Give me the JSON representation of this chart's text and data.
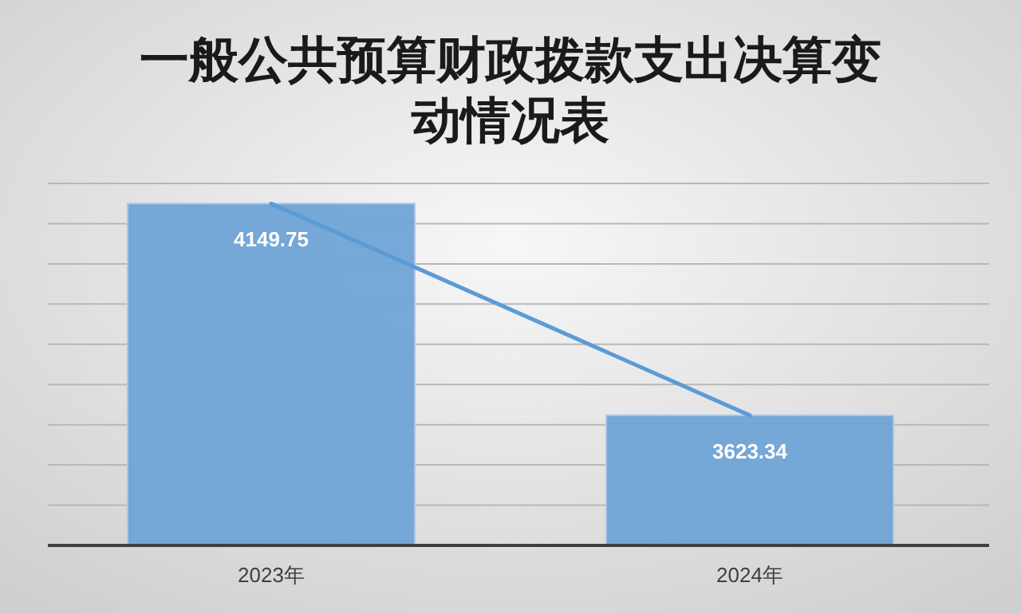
{
  "chart_data": {
    "type": "bar",
    "title": "一般公共预算财政拨款支出决算变动情况表",
    "categories": [
      "2023年",
      "2024年"
    ],
    "series": [
      {
        "color": "#6fa3d6",
        "values": [
          4149.75,
          3623.34
        ],
        "value_labels": [
          "4149.75",
          "3623.34"
        ]
      },
      {
        "type": "line",
        "color": "#5b9bd5",
        "values": [
          4149.75,
          3623.34
        ]
      }
    ],
    "ylim": [
      3300,
      4200
    ],
    "yticks": [
      {
        "value": 3300,
        "label": null
      },
      {
        "value": 3400,
        "label": null
      },
      {
        "value": 3500,
        "label": null
      },
      {
        "value": 3600,
        "label": null
      },
      {
        "value": 3700,
        "label": null
      },
      {
        "value": 3800,
        "label": null
      },
      {
        "value": 3900,
        "label": null
      },
      {
        "value": 4000,
        "label": null
      },
      {
        "value": 4100,
        "label": null
      },
      {
        "value": 4200,
        "label": null
      }
    ],
    "grid": "y",
    "tick_labels": "x",
    "marker": "none",
    "line_style": "solid"
  }
}
